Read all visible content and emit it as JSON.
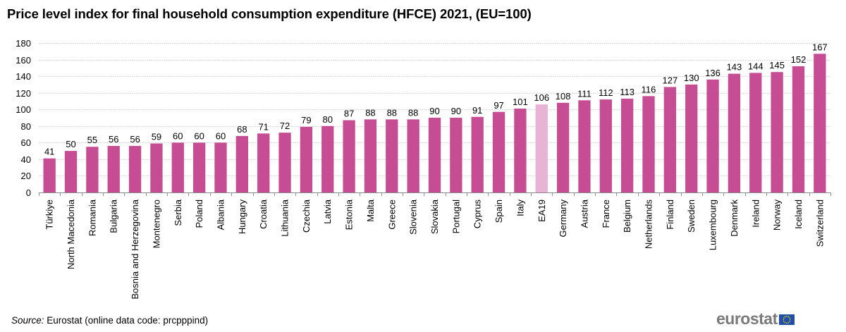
{
  "chart_data": {
    "type": "bar",
    "title": "Price level index for final household consumption expenditure (HFCE) 2021, (EU=100)",
    "xlabel": "",
    "ylabel": "",
    "ylim": [
      0,
      180
    ],
    "yticks": [
      0,
      20,
      40,
      60,
      80,
      100,
      120,
      140,
      160,
      180
    ],
    "grid": true,
    "legend": "none",
    "categories": [
      "Türkiye",
      "North Macedonia",
      "Romania",
      "Bulgaria",
      "Bosnia and Herzegovina",
      "Montenegro",
      "Serbia",
      "Poland",
      "Albania",
      "Hungary",
      "Croatia",
      "Lithuania",
      "Czechia",
      "Latvia",
      "Estonia",
      "Malta",
      "Greece",
      "Slovenia",
      "Slovakia",
      "Portugal",
      "Cyprus",
      "Spain",
      "Italy",
      "EA19",
      "Germany",
      "Austria",
      "France",
      "Belgium",
      "Netherlands",
      "Finland",
      "Sweden",
      "Luxembourg",
      "Denmark",
      "Ireland",
      "Norway",
      "Iceland",
      "Switzerland"
    ],
    "values": [
      41,
      50,
      55,
      56,
      56,
      59,
      60,
      60,
      60,
      68,
      71,
      72,
      79,
      80,
      87,
      88,
      88,
      88,
      90,
      90,
      91,
      97,
      101,
      106,
      108,
      111,
      112,
      113,
      116,
      127,
      130,
      136,
      143,
      144,
      145,
      152,
      167
    ],
    "highlight_category": "EA19",
    "colors": {
      "bar": "#c64d94",
      "highlight_bar": "#e8b3d4",
      "grid": "#d9d9d9",
      "axis": "#8c8c8c"
    }
  },
  "footer": {
    "source_label": "Source:",
    "source_text": " Eurostat (online data code: prcpppind)",
    "logo_text": "eurostat"
  }
}
